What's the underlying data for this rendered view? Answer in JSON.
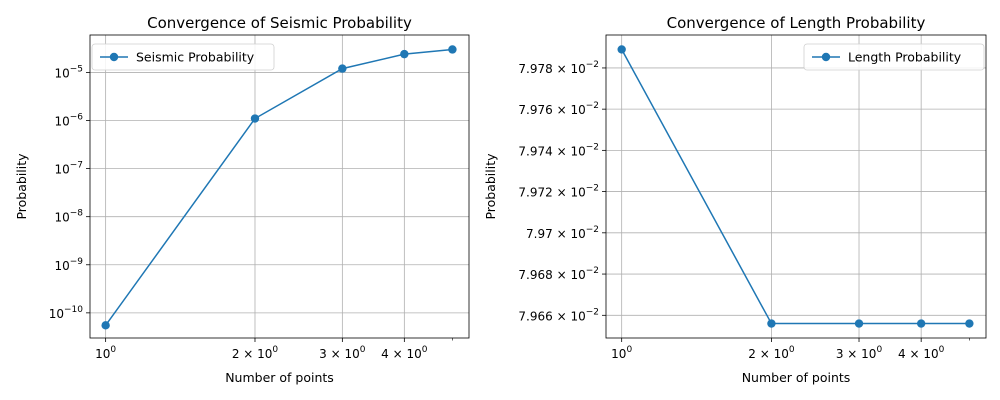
{
  "chart_data": [
    {
      "type": "line",
      "title": "Convergence of Seismic Probability",
      "xlabel": "Number of points",
      "ylabel": "Probability",
      "x_scale": "log",
      "y_scale": "log",
      "x": [
        1,
        2,
        3,
        4,
        5
      ],
      "series": [
        {
          "name": "Seismic Probability",
          "values": [
            5.5e-11,
            1.1e-06,
            1.2e-05,
            2.4e-05,
            3e-05
          ],
          "color": "#1f77b4"
        }
      ],
      "xlim": [
        0.93,
        5.4
      ],
      "ylim": [
        3e-11,
        6e-05
      ],
      "x_ticks": [
        {
          "value": 1,
          "base": "10",
          "exp": "0"
        },
        {
          "value": 2,
          "base": "2 × 10",
          "exp": "0"
        },
        {
          "value": 3,
          "base": "3 × 10",
          "exp": "0"
        },
        {
          "value": 4,
          "base": "4 × 10",
          "exp": "0"
        }
      ],
      "y_ticks": [
        {
          "value": 1e-10,
          "base": "10",
          "exp": "−10"
        },
        {
          "value": 1e-09,
          "base": "10",
          "exp": "−9"
        },
        {
          "value": 1e-08,
          "base": "10",
          "exp": "−8"
        },
        {
          "value": 1e-07,
          "base": "10",
          "exp": "−7"
        },
        {
          "value": 1e-06,
          "base": "10",
          "exp": "−6"
        },
        {
          "value": 1e-05,
          "base": "10",
          "exp": "−5"
        }
      ],
      "grid": true,
      "legend": "upper-left"
    },
    {
      "type": "line",
      "title": "Convergence of Length Probability",
      "xlabel": "Number of points",
      "ylabel": "Probability",
      "x_scale": "log",
      "y_scale": "log",
      "x": [
        1,
        2,
        3,
        4,
        5
      ],
      "series": [
        {
          "name": "Length Probability",
          "values": [
            0.079789,
            0.079656,
            0.079656,
            0.079656,
            0.079656
          ],
          "color": "#1f77b4"
        }
      ],
      "xlim": [
        0.93,
        5.4
      ],
      "ylim": [
        0.079649,
        0.079796
      ],
      "x_ticks": [
        {
          "value": 1,
          "base": "10",
          "exp": "0"
        },
        {
          "value": 2,
          "base": "2 × 10",
          "exp": "0"
        },
        {
          "value": 3,
          "base": "3 × 10",
          "exp": "0"
        },
        {
          "value": 4,
          "base": "4 × 10",
          "exp": "0"
        }
      ],
      "y_ticks": [
        {
          "value": 0.07966,
          "base": "7.966 × 10",
          "exp": "−2"
        },
        {
          "value": 0.07968,
          "base": "7.968 × 10",
          "exp": "−2"
        },
        {
          "value": 0.0797,
          "base": "7.97 × 10",
          "exp": "−2"
        },
        {
          "value": 0.07972,
          "base": "7.972 × 10",
          "exp": "−2"
        },
        {
          "value": 0.07974,
          "base": "7.974 × 10",
          "exp": "−2"
        },
        {
          "value": 0.07976,
          "base": "7.976 × 10",
          "exp": "−2"
        },
        {
          "value": 0.07978,
          "base": "7.978 × 10",
          "exp": "−2"
        }
      ],
      "grid": true,
      "legend": "upper-right"
    }
  ]
}
